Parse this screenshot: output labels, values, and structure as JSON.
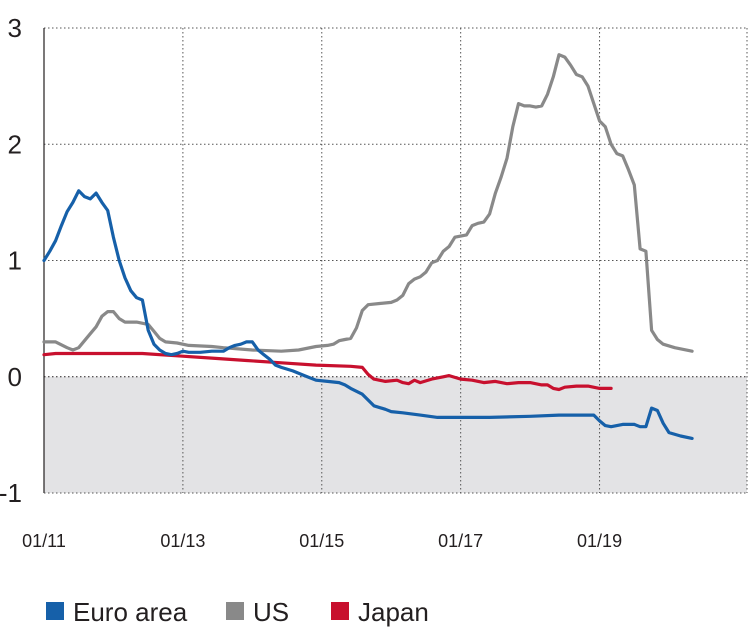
{
  "chart_data": {
    "type": "line",
    "title": "",
    "xlabel": "",
    "ylabel": "",
    "ylim": [
      -1,
      3
    ],
    "xlim": [
      "2011-01",
      "2020-01"
    ],
    "y_ticks": [
      "3",
      "2",
      "1",
      "0",
      "-1"
    ],
    "x_ticks": [
      {
        "label": "01/11",
        "x": "2011-01"
      },
      {
        "label": "01/13",
        "x": "2013-01"
      },
      {
        "label": "01/15",
        "x": "2015-01"
      },
      {
        "label": "01/17",
        "x": "2017-01"
      },
      {
        "label": "01/19",
        "x": "2019-01"
      }
    ],
    "grid": {
      "horizontal": true,
      "vertical": true,
      "style": "dotted"
    },
    "negative_region_shaded": true,
    "legend": {
      "position": "bottom"
    },
    "series": [
      {
        "name": "Euro area",
        "color": "#1660a9",
        "points": [
          [
            "2011-01",
            1.0
          ],
          [
            "2011-02",
            1.08
          ],
          [
            "2011-03",
            1.17
          ],
          [
            "2011-04",
            1.3
          ],
          [
            "2011-05",
            1.42
          ],
          [
            "2011-06",
            1.5
          ],
          [
            "2011-07",
            1.6
          ],
          [
            "2011-08",
            1.55
          ],
          [
            "2011-09",
            1.53
          ],
          [
            "2011-10",
            1.58
          ],
          [
            "2011-11",
            1.5
          ],
          [
            "2011-12",
            1.43
          ],
          [
            "2012-01",
            1.2
          ],
          [
            "2012-02",
            1.0
          ],
          [
            "2012-03",
            0.85
          ],
          [
            "2012-04",
            0.74
          ],
          [
            "2012-05",
            0.68
          ],
          [
            "2012-06",
            0.66
          ],
          [
            "2012-07",
            0.4
          ],
          [
            "2012-08",
            0.28
          ],
          [
            "2012-09",
            0.23
          ],
          [
            "2012-10",
            0.2
          ],
          [
            "2012-11",
            0.19
          ],
          [
            "2012-12",
            0.2
          ],
          [
            "2013-01",
            0.22
          ],
          [
            "2013-02",
            0.21
          ],
          [
            "2013-04",
            0.21
          ],
          [
            "2013-06",
            0.22
          ],
          [
            "2013-08",
            0.22
          ],
          [
            "2013-09",
            0.25
          ],
          [
            "2013-10",
            0.27
          ],
          [
            "2013-11",
            0.28
          ],
          [
            "2013-12",
            0.3
          ],
          [
            "2014-01",
            0.3
          ],
          [
            "2014-02",
            0.23
          ],
          [
            "2014-03",
            0.19
          ],
          [
            "2014-04",
            0.15
          ],
          [
            "2014-05",
            0.1
          ],
          [
            "2014-06",
            0.08
          ],
          [
            "2014-08",
            0.05
          ],
          [
            "2014-10",
            0.01
          ],
          [
            "2014-12",
            -0.03
          ],
          [
            "2015-02",
            -0.04
          ],
          [
            "2015-04",
            -0.05
          ],
          [
            "2015-05",
            -0.07
          ],
          [
            "2015-06",
            -0.1
          ],
          [
            "2015-08",
            -0.15
          ],
          [
            "2015-10",
            -0.25
          ],
          [
            "2015-12",
            -0.28
          ],
          [
            "2016-01",
            -0.3
          ],
          [
            "2016-03",
            -0.31
          ],
          [
            "2016-06",
            -0.33
          ],
          [
            "2016-09",
            -0.35
          ],
          [
            "2017-01",
            -0.35
          ],
          [
            "2017-06",
            -0.35
          ],
          [
            "2018-01",
            -0.34
          ],
          [
            "2018-06",
            -0.33
          ],
          [
            "2018-12",
            -0.33
          ],
          [
            "2019-01",
            -0.38
          ],
          [
            "2019-02",
            -0.42
          ],
          [
            "2019-03",
            -0.43
          ],
          [
            "2019-05",
            -0.41
          ],
          [
            "2019-07",
            -0.41
          ],
          [
            "2019-08",
            -0.43
          ],
          [
            "2019-09",
            -0.43
          ],
          [
            "2019-10",
            -0.27
          ],
          [
            "2019-11",
            -0.29
          ],
          [
            "2019-12",
            -0.4
          ],
          [
            "2020-01",
            -0.48
          ],
          [
            "2020-03",
            -0.51
          ],
          [
            "2020-05",
            -0.53
          ]
        ]
      },
      {
        "name": "US",
        "color": "#898989",
        "points": [
          [
            "2011-01",
            0.3
          ],
          [
            "2011-03",
            0.3
          ],
          [
            "2011-05",
            0.25
          ],
          [
            "2011-06",
            0.23
          ],
          [
            "2011-07",
            0.25
          ],
          [
            "2011-08",
            0.31
          ],
          [
            "2011-09",
            0.37
          ],
          [
            "2011-10",
            0.43
          ],
          [
            "2011-11",
            0.52
          ],
          [
            "2011-12",
            0.56
          ],
          [
            "2012-01",
            0.56
          ],
          [
            "2012-02",
            0.5
          ],
          [
            "2012-03",
            0.47
          ],
          [
            "2012-05",
            0.47
          ],
          [
            "2012-07",
            0.45
          ],
          [
            "2012-08",
            0.39
          ],
          [
            "2012-09",
            0.33
          ],
          [
            "2012-10",
            0.3
          ],
          [
            "2012-12",
            0.29
          ],
          [
            "2013-02",
            0.27
          ],
          [
            "2013-06",
            0.26
          ],
          [
            "2013-08",
            0.25
          ],
          [
            "2014-01",
            0.23
          ],
          [
            "2014-06",
            0.22
          ],
          [
            "2014-09",
            0.23
          ],
          [
            "2014-12",
            0.26
          ],
          [
            "2015-02",
            0.27
          ],
          [
            "2015-03",
            0.28
          ],
          [
            "2015-04",
            0.31
          ],
          [
            "2015-05",
            0.32
          ],
          [
            "2015-06",
            0.33
          ],
          [
            "2015-07",
            0.42
          ],
          [
            "2015-08",
            0.57
          ],
          [
            "2015-09",
            0.62
          ],
          [
            "2015-11",
            0.63
          ],
          [
            "2016-01",
            0.64
          ],
          [
            "2016-02",
            0.66
          ],
          [
            "2016-03",
            0.7
          ],
          [
            "2016-04",
            0.8
          ],
          [
            "2016-05",
            0.84
          ],
          [
            "2016-06",
            0.86
          ],
          [
            "2016-07",
            0.9
          ],
          [
            "2016-08",
            0.98
          ],
          [
            "2016-09",
            1.0
          ],
          [
            "2016-10",
            1.08
          ],
          [
            "2016-11",
            1.12
          ],
          [
            "2016-12",
            1.2
          ],
          [
            "2017-02",
            1.22
          ],
          [
            "2017-03",
            1.3
          ],
          [
            "2017-04",
            1.32
          ],
          [
            "2017-05",
            1.33
          ],
          [
            "2017-06",
            1.4
          ],
          [
            "2017-07",
            1.58
          ],
          [
            "2017-08",
            1.72
          ],
          [
            "2017-09",
            1.88
          ],
          [
            "2017-10",
            2.15
          ],
          [
            "2017-11",
            2.35
          ],
          [
            "2017-12",
            2.33
          ],
          [
            "2018-01",
            2.33
          ],
          [
            "2018-02",
            2.32
          ],
          [
            "2018-03",
            2.33
          ],
          [
            "2018-04",
            2.43
          ],
          [
            "2018-05",
            2.58
          ],
          [
            "2018-06",
            2.77
          ],
          [
            "2018-07",
            2.75
          ],
          [
            "2018-08",
            2.68
          ],
          [
            "2018-09",
            2.6
          ],
          [
            "2018-10",
            2.58
          ],
          [
            "2018-11",
            2.5
          ],
          [
            "2018-12",
            2.35
          ],
          [
            "2019-01",
            2.2
          ],
          [
            "2019-02",
            2.15
          ],
          [
            "2019-03",
            2.0
          ],
          [
            "2019-04",
            1.92
          ],
          [
            "2019-05",
            1.9
          ],
          [
            "2019-06",
            1.78
          ],
          [
            "2019-07",
            1.65
          ],
          [
            "2019-08",
            1.1
          ],
          [
            "2019-09",
            1.08
          ],
          [
            "2019-10",
            0.4
          ],
          [
            "2019-11",
            0.32
          ],
          [
            "2019-12",
            0.28
          ],
          [
            "2020-02",
            0.25
          ],
          [
            "2020-05",
            0.22
          ]
        ]
      },
      {
        "name": "Japan",
        "color": "#c8102e",
        "points": [
          [
            "2011-01",
            0.19
          ],
          [
            "2011-03",
            0.2
          ],
          [
            "2011-12",
            0.2
          ],
          [
            "2012-06",
            0.2
          ],
          [
            "2012-12",
            0.18
          ],
          [
            "2013-06",
            0.16
          ],
          [
            "2013-12",
            0.14
          ],
          [
            "2014-06",
            0.12
          ],
          [
            "2014-12",
            0.1
          ],
          [
            "2015-06",
            0.09
          ],
          [
            "2015-08",
            0.08
          ],
          [
            "2015-09",
            0.02
          ],
          [
            "2015-10",
            -0.02
          ],
          [
            "2015-12",
            -0.04
          ],
          [
            "2016-02",
            -0.03
          ],
          [
            "2016-03",
            -0.05
          ],
          [
            "2016-04",
            -0.06
          ],
          [
            "2016-05",
            -0.03
          ],
          [
            "2016-06",
            -0.05
          ],
          [
            "2016-08",
            -0.02
          ],
          [
            "2016-10",
            0.0
          ],
          [
            "2016-11",
            0.01
          ],
          [
            "2017-01",
            -0.02
          ],
          [
            "2017-03",
            -0.03
          ],
          [
            "2017-05",
            -0.05
          ],
          [
            "2017-07",
            -0.04
          ],
          [
            "2017-09",
            -0.06
          ],
          [
            "2017-11",
            -0.05
          ],
          [
            "2018-01",
            -0.05
          ],
          [
            "2018-03",
            -0.07
          ],
          [
            "2018-04",
            -0.07
          ],
          [
            "2018-05",
            -0.1
          ],
          [
            "2018-06",
            -0.11
          ],
          [
            "2018-07",
            -0.09
          ],
          [
            "2018-09",
            -0.08
          ],
          [
            "2018-11",
            -0.08
          ],
          [
            "2019-01",
            -0.1
          ],
          [
            "2019-03",
            -0.1
          ]
        ]
      }
    ]
  }
}
